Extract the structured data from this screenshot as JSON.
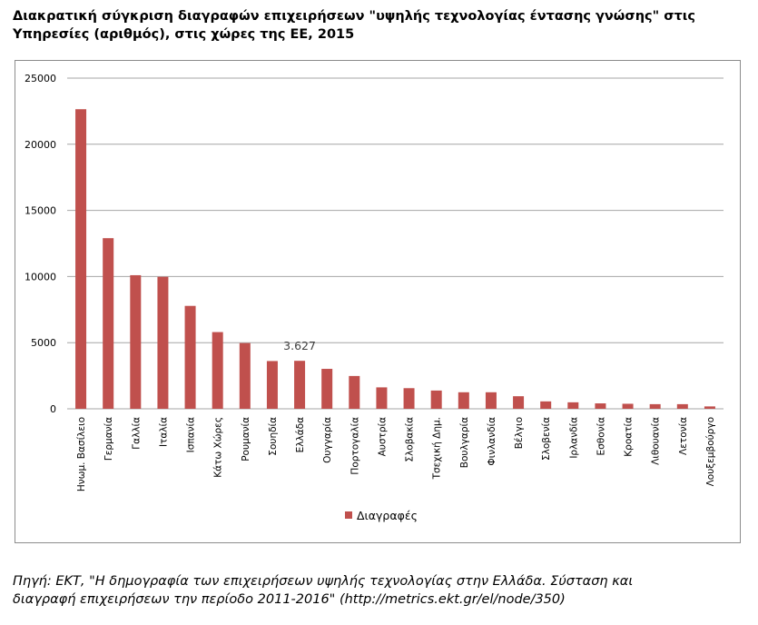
{
  "title_lines": [
    "Διακρατική σύγκριση διαγραφών επιχειρήσεων \"υψηλής τεχνολογίας έντασης γνώσης\" στις",
    "Υπηρεσίες (αριθμός), στις χώρες της ΕΕ, 2015"
  ],
  "caption_lines": [
    "Πηγή: ΕΚΤ, \"Η δημογραφία των επιχειρήσεων υψηλής τεχνολογίας στην Ελλάδα. Σύσταση και",
    "διαγραφή επιχειρήσεων την περίοδο 2011-2016\" (http://metrics.ekt.gr/el/node/350)"
  ],
  "colors": {
    "bar": "#c0504d",
    "grid": "#a6a6a6",
    "axis_text": "#000000"
  },
  "chart_data": {
    "type": "bar",
    "categories": [
      "Ηνωμ. Βασίλειο",
      "Γερμανία",
      "Γαλλία",
      "Ιταλία",
      "Ισπανία",
      "Κάτω Χώρες",
      "Ρουμανία",
      "Σουηδία",
      "Ελλάδα",
      "Ουγγαρία",
      "Πορτογαλία",
      "Αυστρία",
      "Σλοβακία",
      "Τσεχική Δημ.",
      "Βουλγαρία",
      "Φινλανδία",
      "Βέλγιο",
      "Σλοβενία",
      "Ιρλανδία",
      "Εσθονία",
      "Κροατία",
      "Λιθουανία",
      "Λετονία",
      "Λουξεμβούργο"
    ],
    "series": [
      {
        "name": "Διαγραφές",
        "values": [
          22650,
          12900,
          10100,
          9980,
          7780,
          5800,
          4970,
          3610,
          3627,
          3020,
          2480,
          1620,
          1560,
          1380,
          1250,
          1250,
          950,
          560,
          490,
          410,
          380,
          350,
          350,
          180
        ]
      }
    ],
    "ylim": [
      0,
      25000
    ],
    "yticks": [
      0,
      5000,
      10000,
      15000,
      20000,
      25000
    ],
    "grid": true,
    "legend": "bottom",
    "annotations": [
      {
        "category": "Ελλάδα",
        "text": "3.627"
      }
    ]
  }
}
